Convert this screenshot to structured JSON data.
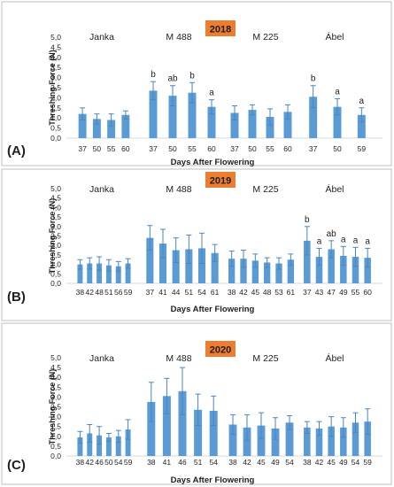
{
  "colors": {
    "bar": "#5b9bd5",
    "error": "#4a86c0",
    "year_badge": "#ed7d31",
    "year_text": "#1f1f1f",
    "grid": "#d9d9d9",
    "border": "#bfbfbf"
  },
  "chart_data": [
    {
      "type": "bar",
      "panel_label": "(A)",
      "year": "2018",
      "ylabel": "Threshing Force (N)",
      "xlabel": "Days After Flowering",
      "ylim": [
        0,
        5
      ],
      "yticks": [
        "0,0",
        "0,5",
        "1,0",
        "1,5",
        "2,0",
        "2,5",
        "3,0",
        "3,5",
        "4,0",
        "4,5",
        "5,0"
      ],
      "grid": false,
      "groups": [
        {
          "name": "Janka",
          "x": [
            "37",
            "50",
            "55",
            "60"
          ],
          "values": [
            1.2,
            0.95,
            0.9,
            1.15
          ],
          "errors": [
            0.3,
            0.25,
            0.3,
            0.2
          ],
          "letters": [
            "",
            "",
            "",
            ""
          ]
        },
        {
          "name": "M 488",
          "x": [
            "37",
            "50",
            "55",
            "60"
          ],
          "values": [
            2.35,
            2.1,
            2.25,
            1.55
          ],
          "errors": [
            0.45,
            0.5,
            0.5,
            0.35
          ],
          "letters": [
            "b",
            "ab",
            "b",
            "a"
          ]
        },
        {
          "name": "M 225",
          "x": [
            "37",
            "50",
            "55",
            "60"
          ],
          "values": [
            1.25,
            1.4,
            1.05,
            1.3
          ],
          "errors": [
            0.35,
            0.25,
            0.4,
            0.35
          ],
          "letters": [
            "",
            "",
            "",
            ""
          ]
        },
        {
          "name": "Ábel",
          "x": [
            "37",
            "50",
            "59"
          ],
          "values": [
            2.05,
            1.55,
            1.15
          ],
          "errors": [
            0.55,
            0.4,
            0.35
          ],
          "letters": [
            "b",
            "a",
            "a"
          ]
        }
      ]
    },
    {
      "type": "bar",
      "panel_label": "(B)",
      "year": "2019",
      "ylabel": "Threshing Force (N)",
      "xlabel": "Days After Flowering",
      "ylim": [
        0,
        5
      ],
      "yticks": [
        "0,0",
        "0,5",
        "1,0",
        "1,5",
        "2,0",
        "2,5",
        "3,0",
        "3,5",
        "4,0",
        "4,5",
        "5,0"
      ],
      "grid": false,
      "groups": [
        {
          "name": "Janka",
          "x": [
            "38",
            "42",
            "48",
            "51",
            "56",
            "59"
          ],
          "values": [
            1.0,
            1.05,
            1.05,
            0.95,
            0.9,
            1.05
          ],
          "errors": [
            0.25,
            0.3,
            0.35,
            0.3,
            0.25,
            0.25
          ],
          "letters": [
            "",
            "",
            "",
            "",
            "",
            ""
          ]
        },
        {
          "name": "M 488",
          "x": [
            "37",
            "41",
            "44",
            "51",
            "54",
            "61"
          ],
          "values": [
            2.4,
            2.1,
            1.75,
            1.8,
            1.85,
            1.6
          ],
          "errors": [
            0.65,
            0.75,
            0.65,
            0.75,
            0.8,
            0.45
          ],
          "letters": [
            "",
            "",
            "",
            "",
            "",
            ""
          ]
        },
        {
          "name": "M 225",
          "x": [
            "38",
            "42",
            "45",
            "48",
            "53",
            "61"
          ],
          "values": [
            1.3,
            1.3,
            1.2,
            1.1,
            1.05,
            1.25
          ],
          "errors": [
            0.4,
            0.45,
            0.35,
            0.25,
            0.3,
            0.3
          ],
          "letters": [
            "",
            "",
            "",
            "",
            "",
            ""
          ]
        },
        {
          "name": "Ábel",
          "x": [
            "37",
            "43",
            "47",
            "49",
            "55",
            "60"
          ],
          "values": [
            2.25,
            1.4,
            1.8,
            1.45,
            1.4,
            1.35
          ],
          "errors": [
            0.75,
            0.45,
            0.45,
            0.5,
            0.5,
            0.5
          ],
          "letters": [
            "b",
            "a",
            "ab",
            "a",
            "a",
            "a"
          ]
        }
      ]
    },
    {
      "type": "bar",
      "panel_label": "(C)",
      "year": "2020",
      "ylabel": "Threshing Force (N)",
      "xlabel": "Days After Flowering",
      "ylim": [
        0,
        5
      ],
      "yticks": [
        "0,0",
        "0,5",
        "1,0",
        "1,5",
        "2,0",
        "2,5",
        "3,0",
        "3,5",
        "4,0",
        "4,5",
        "5,0"
      ],
      "grid": false,
      "groups": [
        {
          "name": "Janka",
          "x": [
            "38",
            "42",
            "46",
            "50",
            "54",
            "59"
          ],
          "values": [
            0.95,
            1.15,
            1.05,
            0.95,
            1.0,
            1.35
          ],
          "errors": [
            0.3,
            0.45,
            0.45,
            0.2,
            0.3,
            0.5
          ],
          "letters": [
            "",
            "",
            "",
            "",
            "",
            ""
          ]
        },
        {
          "name": "M 488",
          "x": [
            "38",
            "41",
            "46",
            "51",
            "54"
          ],
          "values": [
            2.75,
            3.05,
            3.3,
            2.35,
            2.3
          ],
          "errors": [
            1.0,
            0.9,
            1.2,
            0.8,
            0.75
          ],
          "letters": [
            "",
            "",
            "",
            "",
            ""
          ]
        },
        {
          "name": "M 225",
          "x": [
            "38",
            "42",
            "45",
            "49",
            "54"
          ],
          "values": [
            1.6,
            1.45,
            1.55,
            1.4,
            1.7
          ],
          "errors": [
            0.5,
            0.65,
            0.65,
            0.55,
            0.35
          ],
          "letters": [
            "",
            "",
            "",
            "",
            ""
          ]
        },
        {
          "name": "Ábel",
          "x": [
            "38",
            "42",
            "45",
            "49",
            "54",
            "59"
          ],
          "values": [
            1.45,
            1.4,
            1.5,
            1.45,
            1.7,
            1.75
          ],
          "errors": [
            0.3,
            0.35,
            0.5,
            0.5,
            0.5,
            0.65
          ],
          "letters": [
            "",
            "",
            "",
            "",
            "",
            ""
          ]
        }
      ]
    }
  ]
}
